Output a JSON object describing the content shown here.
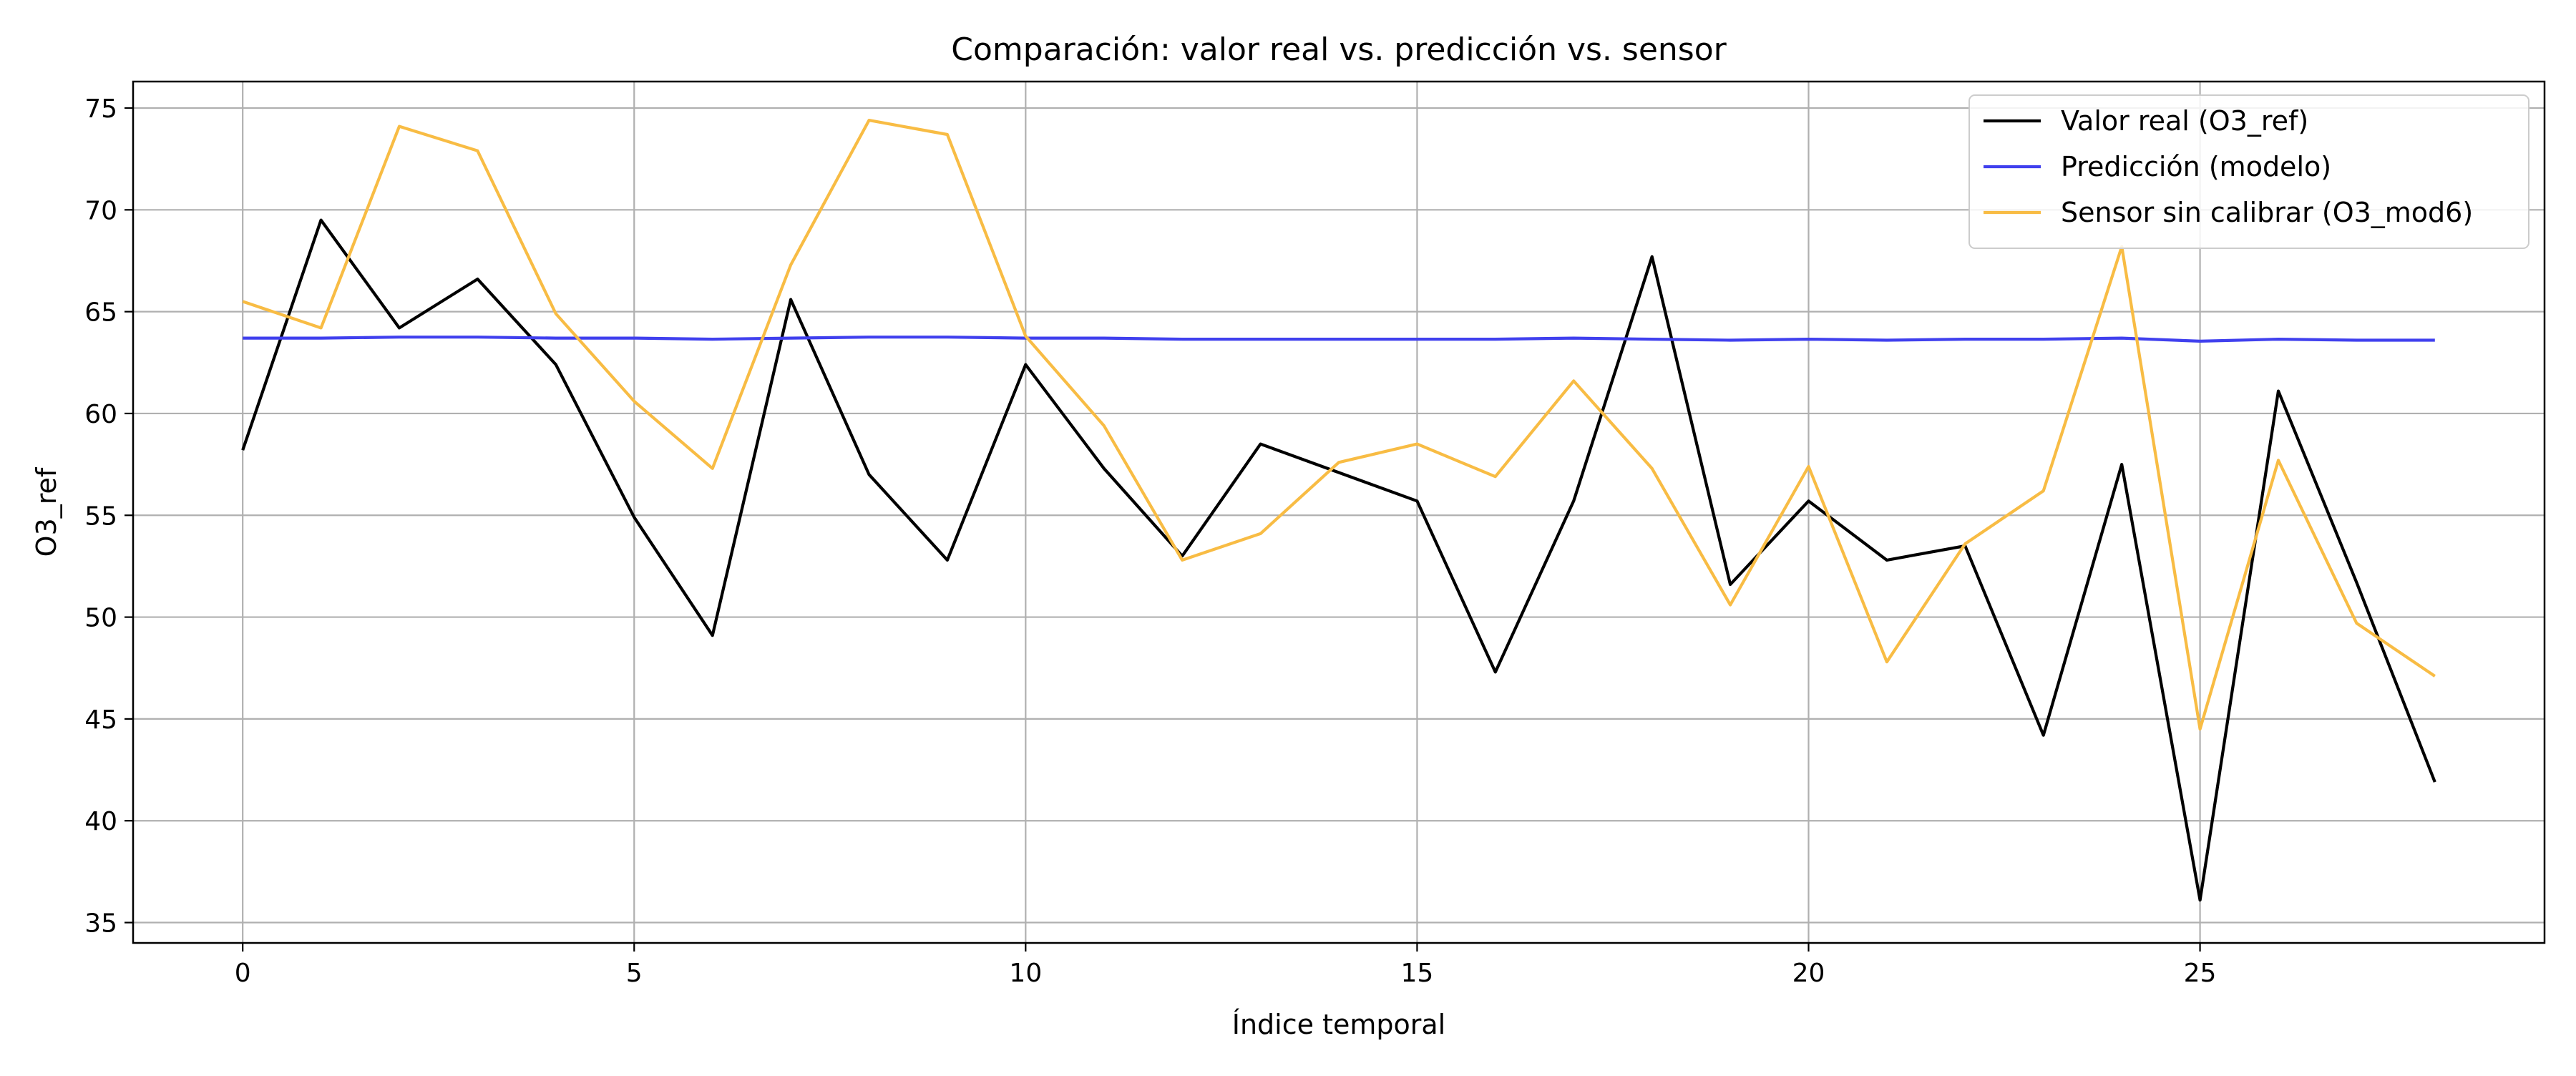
{
  "chart_data": {
    "type": "line",
    "title": "Comparación: valor real vs. predicción vs. sensor",
    "xlabel": "Índice temporal",
    "ylabel": "O3_ref",
    "xlim": [
      -1.4,
      29.4
    ],
    "ylim": [
      34.0,
      76.3
    ],
    "xticks": [
      0,
      5,
      10,
      15,
      20,
      25
    ],
    "yticks": [
      35,
      40,
      45,
      50,
      55,
      60,
      65,
      70,
      75
    ],
    "grid": true,
    "legend_position": "top-right",
    "x": [
      0,
      1,
      2,
      3,
      4,
      5,
      6,
      7,
      8,
      9,
      10,
      11,
      12,
      13,
      14,
      15,
      16,
      17,
      18,
      19,
      20,
      21,
      22,
      23,
      24,
      25,
      26,
      27,
      28
    ],
    "series": [
      {
        "name": "Valor real (O3_ref)",
        "color": "#000000",
        "values": [
          58.2,
          69.5,
          64.2,
          66.6,
          62.4,
          54.9,
          49.1,
          65.6,
          57.0,
          52.8,
          62.4,
          57.3,
          53.0,
          58.5,
          57.1,
          55.7,
          47.3,
          55.7,
          67.7,
          51.6,
          55.7,
          52.8,
          53.5,
          44.2,
          57.5,
          36.1,
          61.1,
          51.7,
          41.9
        ]
      },
      {
        "name": "Predicción (modelo)",
        "color": "#4040ee",
        "values": [
          63.7,
          63.7,
          63.75,
          63.75,
          63.7,
          63.7,
          63.65,
          63.7,
          63.75,
          63.75,
          63.7,
          63.7,
          63.65,
          63.65,
          63.65,
          63.65,
          63.65,
          63.7,
          63.65,
          63.6,
          63.65,
          63.6,
          63.65,
          63.65,
          63.7,
          63.55,
          63.65,
          63.6,
          63.6
        ]
      },
      {
        "name": "Sensor sin calibrar (O3_mod6)",
        "color": "#f8bc44",
        "values": [
          65.5,
          64.2,
          74.1,
          72.9,
          64.9,
          60.6,
          57.3,
          67.3,
          74.4,
          73.7,
          63.8,
          59.4,
          52.8,
          54.1,
          57.6,
          58.5,
          56.9,
          61.6,
          57.3,
          50.6,
          57.4,
          47.8,
          53.6,
          56.2,
          68.2,
          44.5,
          57.7,
          49.7,
          47.1
        ]
      }
    ]
  }
}
